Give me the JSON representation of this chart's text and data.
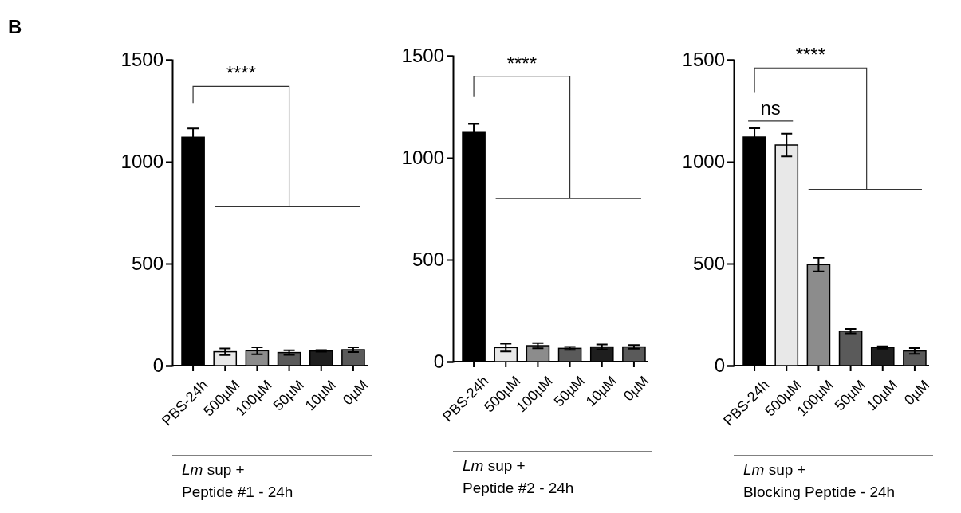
{
  "chart_data": [
    {
      "type": "bar",
      "title": "B",
      "xlabel": "Lm sup +\nPeptide #1 - 24h",
      "categories": [
        "PBS-24h",
        "500µM",
        "100µM",
        "50µM",
        "10µM",
        "0µM"
      ],
      "values": [
        1120,
        68,
        73,
        64,
        72,
        78
      ],
      "errors": [
        43,
        16,
        17,
        11,
        4,
        12
      ],
      "colors": [
        "#000000",
        "#e8e8e8",
        "#8c8c8c",
        "#5a5a5a",
        "#1e1e1e",
        "#5a5a5a"
      ],
      "ylim": [
        0,
        1500
      ],
      "yticks": [
        0,
        500,
        1000,
        1500
      ],
      "grid": false,
      "annotations": [
        "****"
      ]
    },
    {
      "type": "bar",
      "xlabel": "Lm sup +\nPeptide #2 - 24h",
      "categories": [
        "PBS-24h",
        "500µM",
        "100µM",
        "50µM",
        "10µM",
        "0µM"
      ],
      "values": [
        1124,
        69,
        78,
        65,
        72,
        72
      ],
      "errors": [
        42,
        19,
        13,
        7,
        12,
        9
      ],
      "colors": [
        "#000000",
        "#e8e8e8",
        "#8c8c8c",
        "#5a5a5a",
        "#1e1e1e",
        "#5a5a5a"
      ],
      "ylim": [
        0,
        1500
      ],
      "yticks": [
        0,
        500,
        1000,
        1500
      ],
      "grid": false,
      "annotations": [
        "****"
      ]
    },
    {
      "type": "bar",
      "xlabel": "Lm sup +\nBlocking Peptide - 24h",
      "categories": [
        "PBS-24h",
        "500µM",
        "100µM",
        "50µM",
        "10µM",
        "0µM"
      ],
      "values": [
        1121,
        1082,
        495,
        169,
        89,
        72
      ],
      "errors": [
        43,
        56,
        33,
        11,
        6,
        14
      ],
      "colors": [
        "#000000",
        "#e8e8e8",
        "#8c8c8c",
        "#5a5a5a",
        "#1e1e1e",
        "#5a5a5a"
      ],
      "ylim": [
        0,
        1500
      ],
      "yticks": [
        0,
        500,
        1000,
        1500
      ],
      "grid": false,
      "annotations": [
        "****",
        "ns"
      ]
    }
  ]
}
